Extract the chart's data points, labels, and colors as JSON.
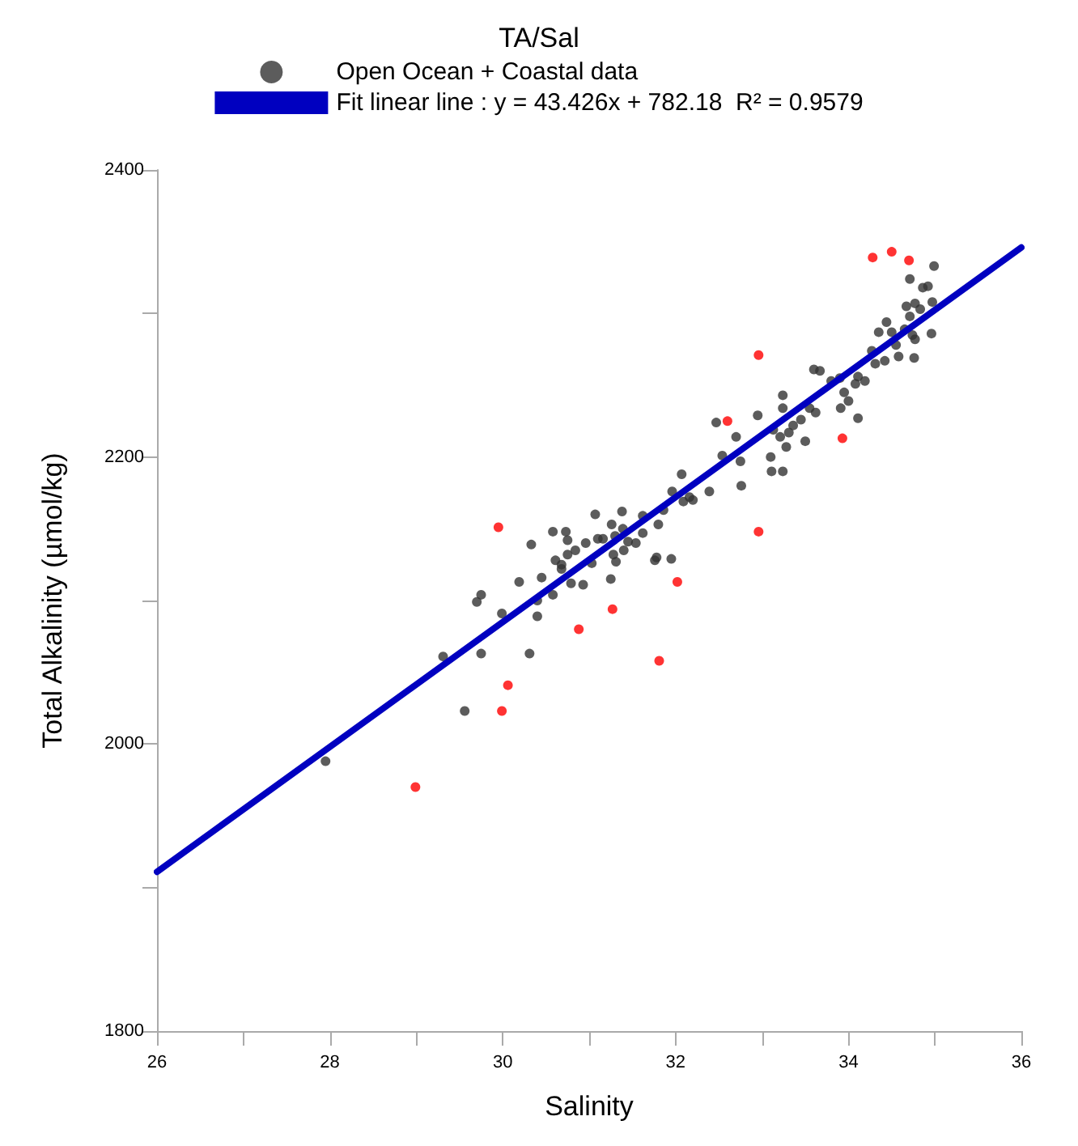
{
  "chart_data": {
    "type": "scatter",
    "title": "TA/Sal",
    "xlabel": "Salinity",
    "ylabel": "Total Alkalinity (µmol/kg)",
    "legend": "top",
    "grid": false,
    "marker": "circle",
    "xlim": [
      26,
      36
    ],
    "ylim": [
      1800,
      2400
    ],
    "xticks": [
      26,
      {
        "value": 27,
        "label": null
      },
      28,
      {
        "value": 29,
        "label": null
      },
      30,
      {
        "value": 31,
        "label": null
      },
      32,
      {
        "value": 33,
        "label": null
      },
      34,
      {
        "value": 35,
        "label": null
      },
      36
    ],
    "yticks": [
      1800,
      {
        "value": 1900,
        "label": null
      },
      2000,
      {
        "value": 2100,
        "label": null
      },
      2200,
      {
        "value": 2300,
        "label": null
      },
      2400
    ],
    "series": [
      {
        "name": "Open Ocean + Coastal data",
        "color": "#333333",
        "x": [
          27.95,
          30.33,
          30.58,
          30.73,
          30.75,
          30.61,
          30.68,
          30.68,
          30.75,
          30.84,
          30.96,
          31.07,
          31.1,
          31.16,
          31.26,
          31.38,
          31.39,
          31.3,
          31.45,
          31.54,
          31.62,
          31.62,
          31.8,
          31.86,
          31.96,
          32.07,
          32.09,
          32.16,
          32.2,
          32.39,
          31.4,
          31.28,
          31.31,
          31.03,
          31.25,
          30.93,
          30.79,
          30.58,
          30.45,
          30.19,
          30.4,
          30.4,
          29.75,
          29.7,
          29.99,
          29.31,
          29.75,
          30.31,
          29.56,
          31.76,
          31.78,
          31.95,
          34.99,
          34.71,
          34.86,
          34.92,
          34.97,
          34.67,
          34.77,
          34.83,
          34.71,
          34.44,
          34.35,
          34.5,
          34.65,
          34.74,
          34.77,
          34.96,
          34.76,
          34.58,
          34.42,
          34.31,
          34.27,
          34.55,
          34.11,
          34.19,
          34.08,
          33.95,
          33.8,
          33.9,
          33.67,
          33.6,
          34.0,
          33.91,
          34.11,
          33.24,
          33.24,
          32.95,
          33.62,
          33.55,
          33.45,
          33.36,
          33.31,
          33.5,
          33.21,
          33.13,
          33.28,
          33.1,
          33.11,
          33.24,
          32.7,
          32.75,
          32.54,
          32.47,
          32.76
        ],
        "values": [
          1988,
          2139,
          2148,
          2148,
          2142,
          2128,
          2125,
          2122,
          2132,
          2135,
          2140,
          2160,
          2143,
          2143,
          2153,
          2162,
          2150,
          2145,
          2141,
          2140,
          2159,
          2147,
          2153,
          2163,
          2176,
          2188,
          2169,
          2172,
          2170,
          2176,
          2135,
          2132,
          2127,
          2126,
          2115,
          2111,
          2112,
          2104,
          2116,
          2113,
          2100,
          2089,
          2104,
          2099,
          2091,
          2061,
          2063,
          2063,
          2023,
          2128,
          2130,
          2129,
          2333,
          2324,
          2318,
          2319,
          2308,
          2305,
          2307,
          2303,
          2298,
          2294,
          2287,
          2287,
          2289,
          2285,
          2282,
          2286,
          2269,
          2270,
          2267,
          2265,
          2274,
          2278,
          2256,
          2253,
          2251,
          2245,
          2253,
          2255,
          2260,
          2261,
          2239,
          2234,
          2227,
          2243,
          2234,
          2229,
          2231,
          2234,
          2226,
          2222,
          2217,
          2211,
          2214,
          2219,
          2207,
          2200,
          2190,
          2190,
          2214,
          2197,
          2201,
          2224,
          2180
        ]
      },
      {
        "color": "#ff0000",
        "x": [
          29.95,
          32.02,
          31.27,
          30.88,
          31.81,
          30.06,
          29.99,
          28.99,
          34.28,
          34.5,
          34.7,
          32.96,
          33.93,
          32.96,
          32.6
        ],
        "values": [
          2151,
          2113,
          2094,
          2080,
          2058,
          2041,
          2023,
          1970,
          2339,
          2343,
          2337,
          2271,
          2213,
          2148,
          2225
        ]
      },
      {
        "name": "Fit linear line : y = 43.426x + 782.18  R² = 0.9579",
        "type": "line",
        "color": "#0000c0",
        "x": [
          26,
          36
        ],
        "values": [
          1911,
          2346
        ],
        "marker": "none",
        "line_style": "solid"
      }
    ]
  }
}
